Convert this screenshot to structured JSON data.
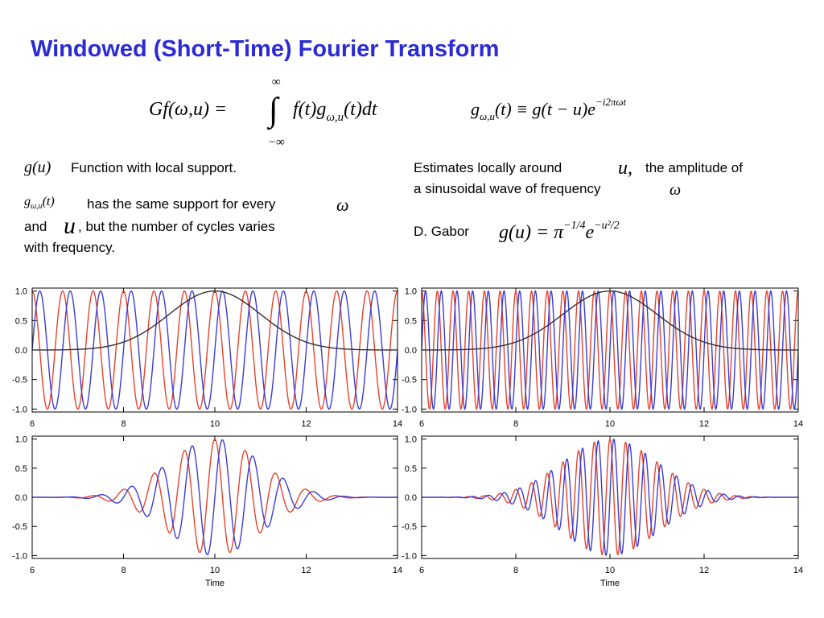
{
  "title": "Windowed (Short-Time) Fourier Transform",
  "formulas": {
    "transform": {
      "lhs": "Gf(ω,u) =",
      "integral": "∫",
      "upper": "∞",
      "lower": "−∞",
      "integrand": "f(t)g",
      "sub": "ω,u",
      "tail": "(t)dt"
    },
    "atom": {
      "g": "g",
      "sub": "ω,u",
      "mid": "(t) ≡ g(t − u)e",
      "sup": "−i2πωt"
    }
  },
  "left_text": {
    "g_u": "g(u)",
    "g_u_desc": "Function with local support.",
    "g_atom": "g",
    "g_atom_sub": "ω,u",
    "g_atom_tail": "(t)",
    "line2": "has the same support for every",
    "omega": "ω",
    "and": "and",
    "u": "u",
    "line3": ", but the number of cycles varies",
    "line4": "with frequency."
  },
  "right_text": {
    "est": "Estimates locally around",
    "u": "u,",
    "est2": "the amplitude of",
    "line2": "a sinusoidal wave of frequency",
    "omega": "ω",
    "gabor": "D. Gabor",
    "gabor_formula": {
      "lhs": "g(u) = π",
      "sup1": "−1/4",
      "e": "e",
      "sup2": "−u²/2"
    }
  },
  "chart_data": [
    {
      "type": "line",
      "xlim": [
        6,
        14
      ],
      "ylim": [
        -1.05,
        1.05
      ],
      "xticks": [
        6,
        8,
        10,
        12,
        14
      ],
      "yticks": [
        {
          "value": 1,
          "label": "1.0"
        },
        {
          "value": 0.5,
          "label": "0.5"
        },
        {
          "value": 0,
          "label": "0.0"
        },
        {
          "value": -0.5,
          "label": "-0.5"
        },
        {
          "value": -1,
          "label": "-1.0"
        }
      ],
      "window": {
        "center": 10,
        "width": 1,
        "color": "#303030",
        "shown": true
      },
      "series": [
        {
          "color": "#e8432c",
          "frequency": 1.5,
          "phase": 0,
          "windowed": false
        },
        {
          "color": "#3c3cd8",
          "frequency": 1.5,
          "phase": -90,
          "windowed": false
        }
      ]
    },
    {
      "type": "line",
      "xlim": [
        6,
        14
      ],
      "ylim": [
        -1.05,
        1.05
      ],
      "xticks": [
        6,
        8,
        10,
        12,
        14
      ],
      "yticks": [
        {
          "value": 1,
          "label": "1.0"
        },
        {
          "value": 0.5,
          "label": "0.5"
        },
        {
          "value": 0,
          "label": "0.0"
        },
        {
          "value": -0.5,
          "label": "-0.5"
        },
        {
          "value": -1,
          "label": "-1.0"
        }
      ],
      "window": {
        "center": 10,
        "width": 1,
        "color": "#303030",
        "shown": true
      },
      "series": [
        {
          "color": "#e8432c",
          "frequency": 3,
          "phase": 0,
          "windowed": false
        },
        {
          "color": "#3c3cd8",
          "frequency": 3,
          "phase": -90,
          "windowed": false
        }
      ]
    },
    {
      "type": "line",
      "xlim": [
        6,
        14
      ],
      "ylim": [
        -1.05,
        1.05
      ],
      "xticks": [
        6,
        8,
        10,
        12,
        14
      ],
      "xlabel": "Time",
      "yticks": [
        {
          "value": 1,
          "label": "1.0"
        },
        {
          "value": 0.5,
          "label": "0.5"
        },
        {
          "value": 0,
          "label": "0.0"
        },
        {
          "value": -0.5,
          "label": "-0.5"
        },
        {
          "value": -1,
          "label": "-1.0"
        }
      ],
      "window": {
        "center": 10,
        "width": 1,
        "color": "#303030",
        "shown": false
      },
      "series": [
        {
          "color": "#e8432c",
          "frequency": 1.5,
          "phase": 0,
          "windowed": true
        },
        {
          "color": "#3c3cd8",
          "frequency": 1.5,
          "phase": -90,
          "windowed": true
        }
      ]
    },
    {
      "type": "line",
      "xlim": [
        6,
        14
      ],
      "ylim": [
        -1.05,
        1.05
      ],
      "xticks": [
        6,
        8,
        10,
        12,
        14
      ],
      "xlabel": "Time",
      "yticks": [
        {
          "value": 1,
          "label": "1.0"
        },
        {
          "value": 0.5,
          "label": "0.5"
        },
        {
          "value": 0,
          "label": "0.0"
        },
        {
          "value": -0.5,
          "label": "-0.5"
        },
        {
          "value": -1,
          "label": "-1.0"
        }
      ],
      "window": {
        "center": 10,
        "width": 1,
        "color": "#303030",
        "shown": false
      },
      "series": [
        {
          "color": "#e8432c",
          "frequency": 3,
          "phase": 0,
          "windowed": true
        },
        {
          "color": "#3c3cd8",
          "frequency": 3,
          "phase": -90,
          "windowed": true
        }
      ]
    }
  ]
}
